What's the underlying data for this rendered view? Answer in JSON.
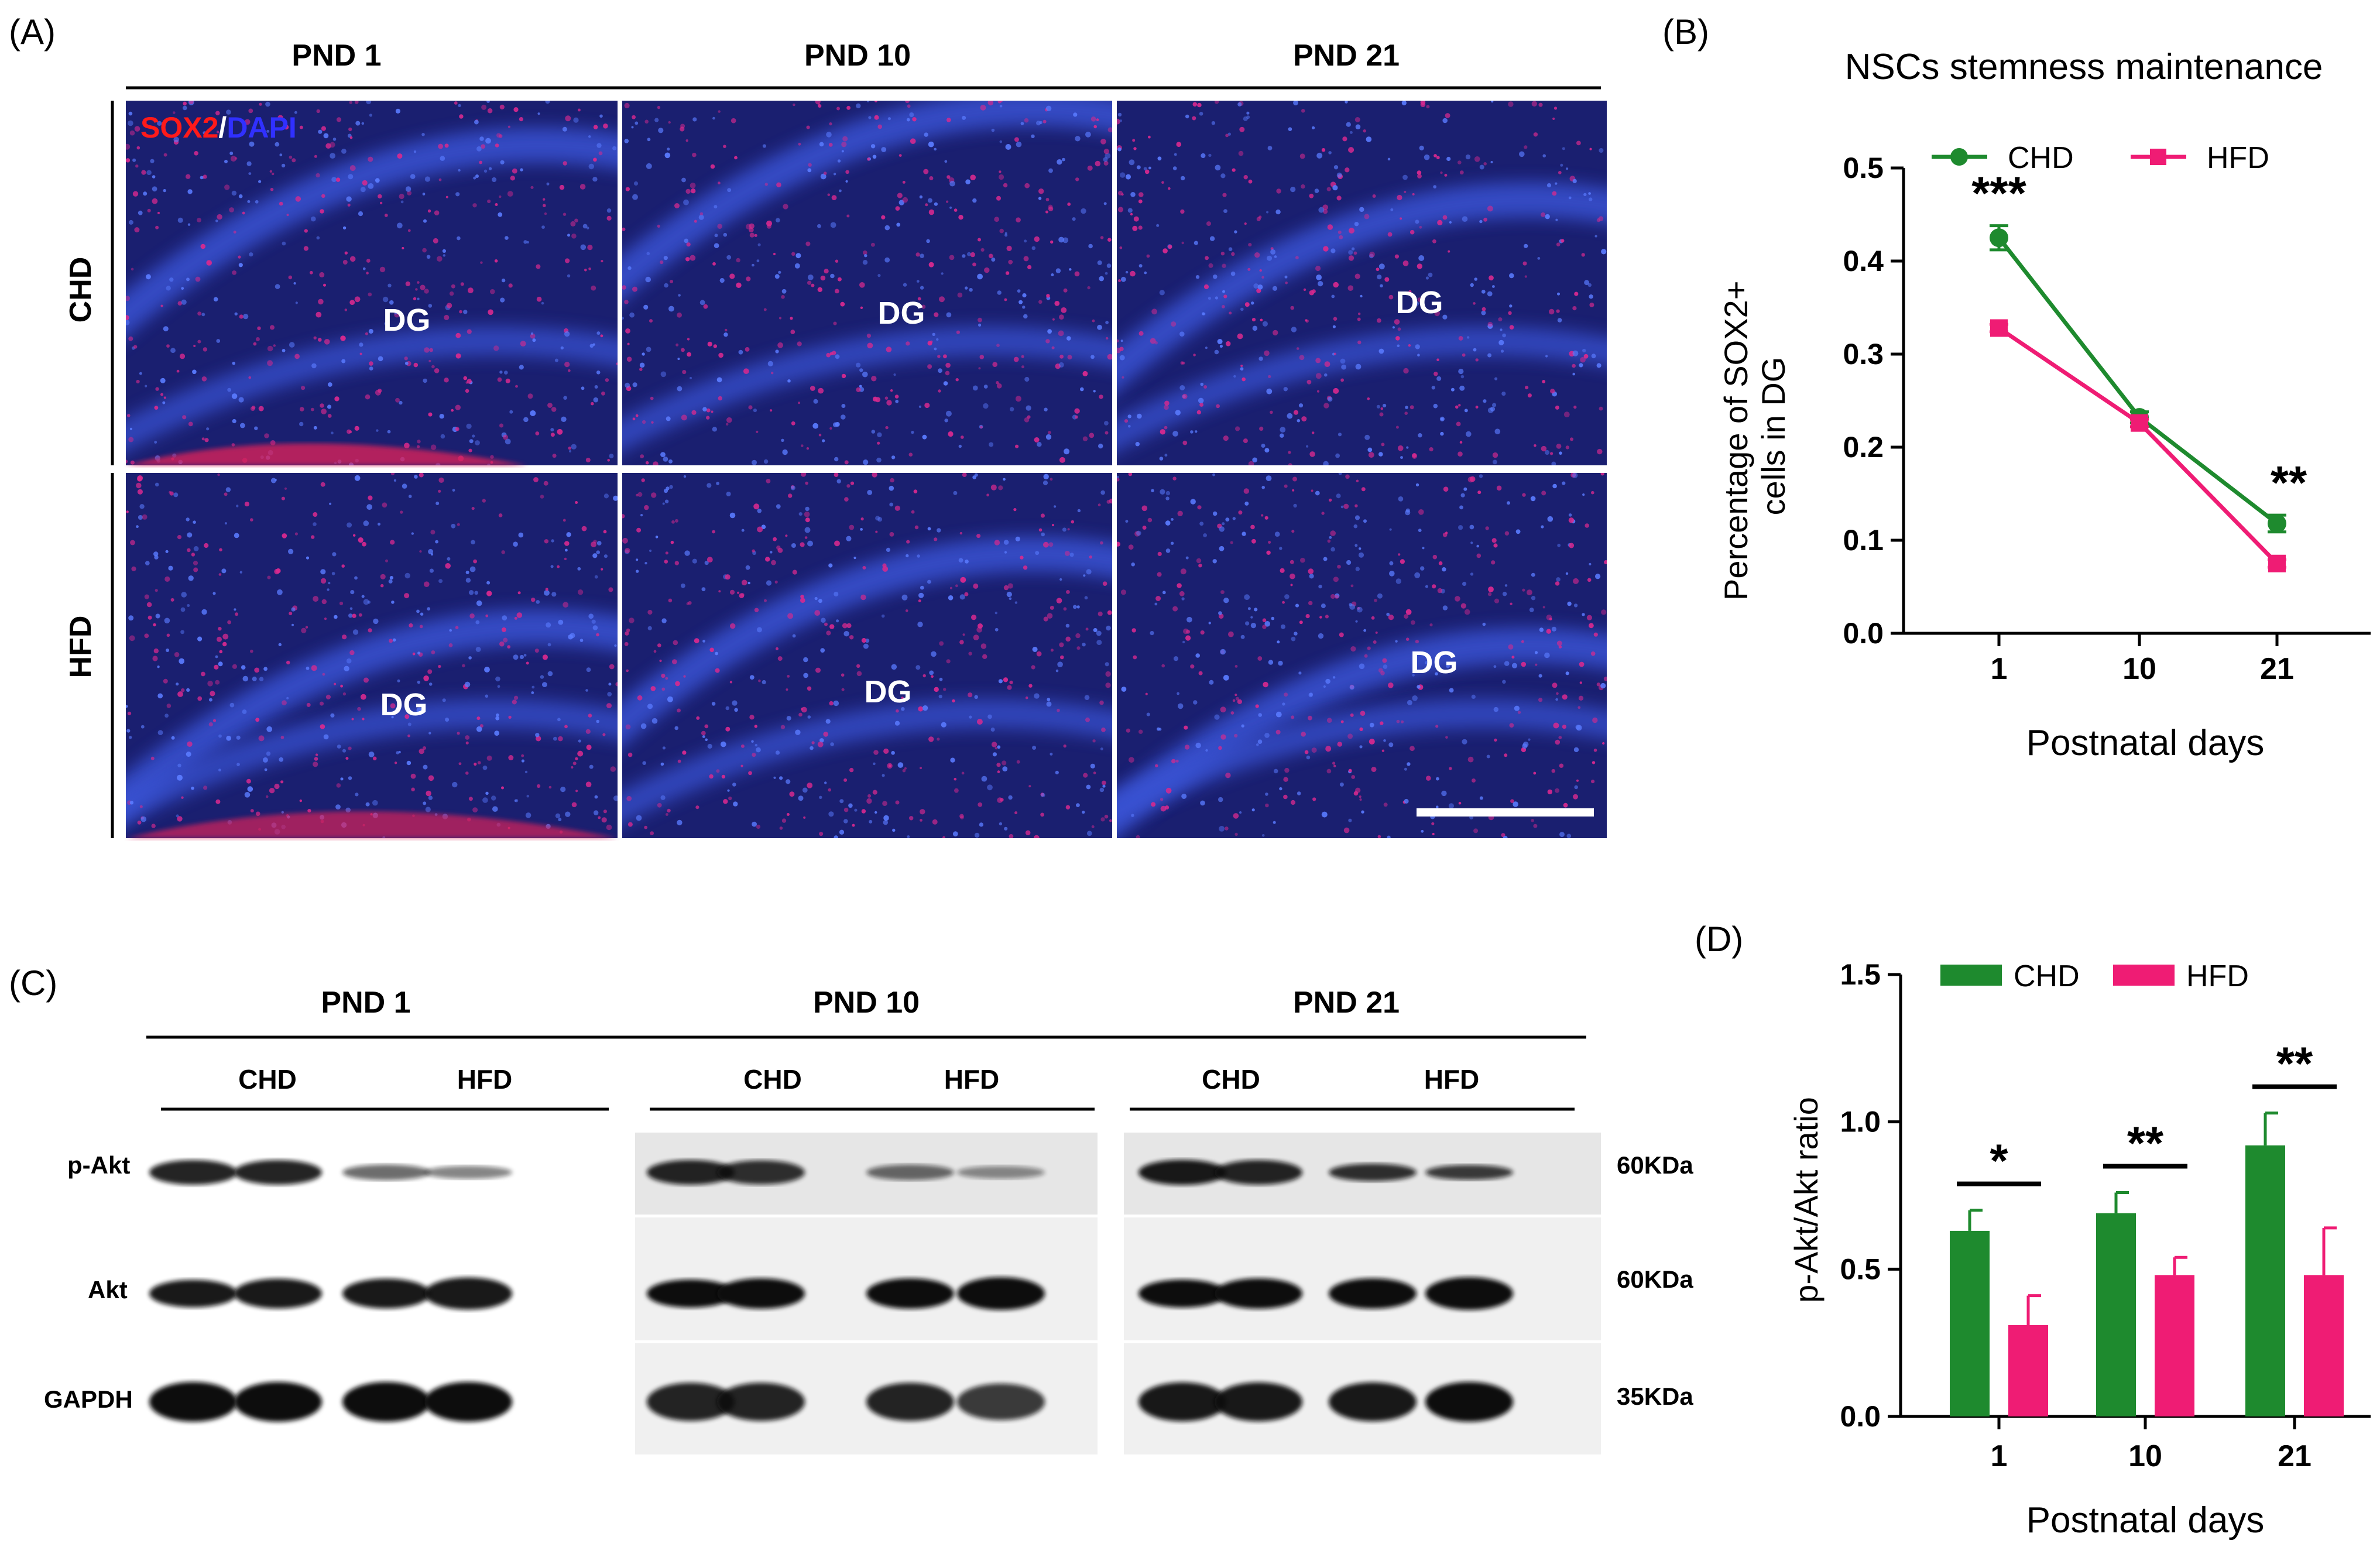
{
  "panel_a": {
    "label": "(A)",
    "columns": [
      "PND 1",
      "PND 10",
      "PND 21"
    ],
    "rows": [
      "CHD",
      "HFD"
    ],
    "stain": {
      "marker": "SOX2",
      "separator": "/",
      "counter": "DAPI",
      "marker_color": "#ff1a1a",
      "counter_color": "#3030ff"
    },
    "region_label": "DG",
    "micrograph_colors": {
      "base": "#1a1f70",
      "nuclei": "#d8298f",
      "band": "#3b54d8"
    }
  },
  "panel_c": {
    "label": "(C)",
    "timepoints": [
      "PND 1",
      "PND 10",
      "PND 21"
    ],
    "groups": [
      "CHD",
      "HFD"
    ],
    "proteins": [
      {
        "name": "p-Akt",
        "size": "60KDa"
      },
      {
        "name": "Akt",
        "size": "60KDa"
      },
      {
        "name": "GAPDH",
        "size": "35KDa"
      }
    ]
  },
  "chart_data": [
    {
      "panel_label": "(B)",
      "type": "line",
      "title": "NSCs stemness maintenance",
      "xlabel": "Postnatal days",
      "ylabel": "Percentage of SOX2+ cells in DG",
      "ylabel_lines": [
        "Percentage of SOX2+",
        "cells in DG"
      ],
      "categories": [
        "1",
        "10",
        "21"
      ],
      "ylim": [
        0,
        0.5
      ],
      "yticks": [
        "0.0",
        "0.1",
        "0.2",
        "0.3",
        "0.4",
        "0.5"
      ],
      "legend_position": "top",
      "grid": false,
      "series": [
        {
          "name": "CHD",
          "color": "#1e8a2e",
          "marker": "circle",
          "values": [
            0.425,
            0.232,
            0.118
          ],
          "errors": [
            0.013,
            0.006,
            0.009
          ]
        },
        {
          "name": "HFD",
          "color": "#ef1c74",
          "marker": "square",
          "values": [
            0.328,
            0.226,
            0.075
          ],
          "errors": [
            0.004,
            0.004,
            0.004
          ]
        }
      ],
      "annotations": [
        {
          "category": "1",
          "text": "***"
        },
        {
          "category": "21",
          "text": "**"
        }
      ]
    },
    {
      "panel_label": "(D)",
      "type": "bar",
      "title": "",
      "xlabel": "Postnatal days",
      "ylabel": "p-Akt/Akt ratio",
      "categories": [
        "1",
        "10",
        "21"
      ],
      "ylim": [
        0,
        1.5
      ],
      "yticks": [
        "0.0",
        "0.5",
        "1.0",
        "1.5"
      ],
      "legend_position": "top",
      "grid": false,
      "series": [
        {
          "name": "CHD",
          "color": "#1e8a2e",
          "values": [
            0.63,
            0.69,
            0.92
          ],
          "errors": [
            0.07,
            0.07,
            0.11
          ]
        },
        {
          "name": "HFD",
          "color": "#ef1c74",
          "values": [
            0.31,
            0.48,
            0.48
          ],
          "errors": [
            0.1,
            0.06,
            0.16
          ]
        }
      ],
      "annotations": [
        {
          "category": "1",
          "text": "*"
        },
        {
          "category": "10",
          "text": "**"
        },
        {
          "category": "21",
          "text": "**"
        }
      ]
    }
  ]
}
